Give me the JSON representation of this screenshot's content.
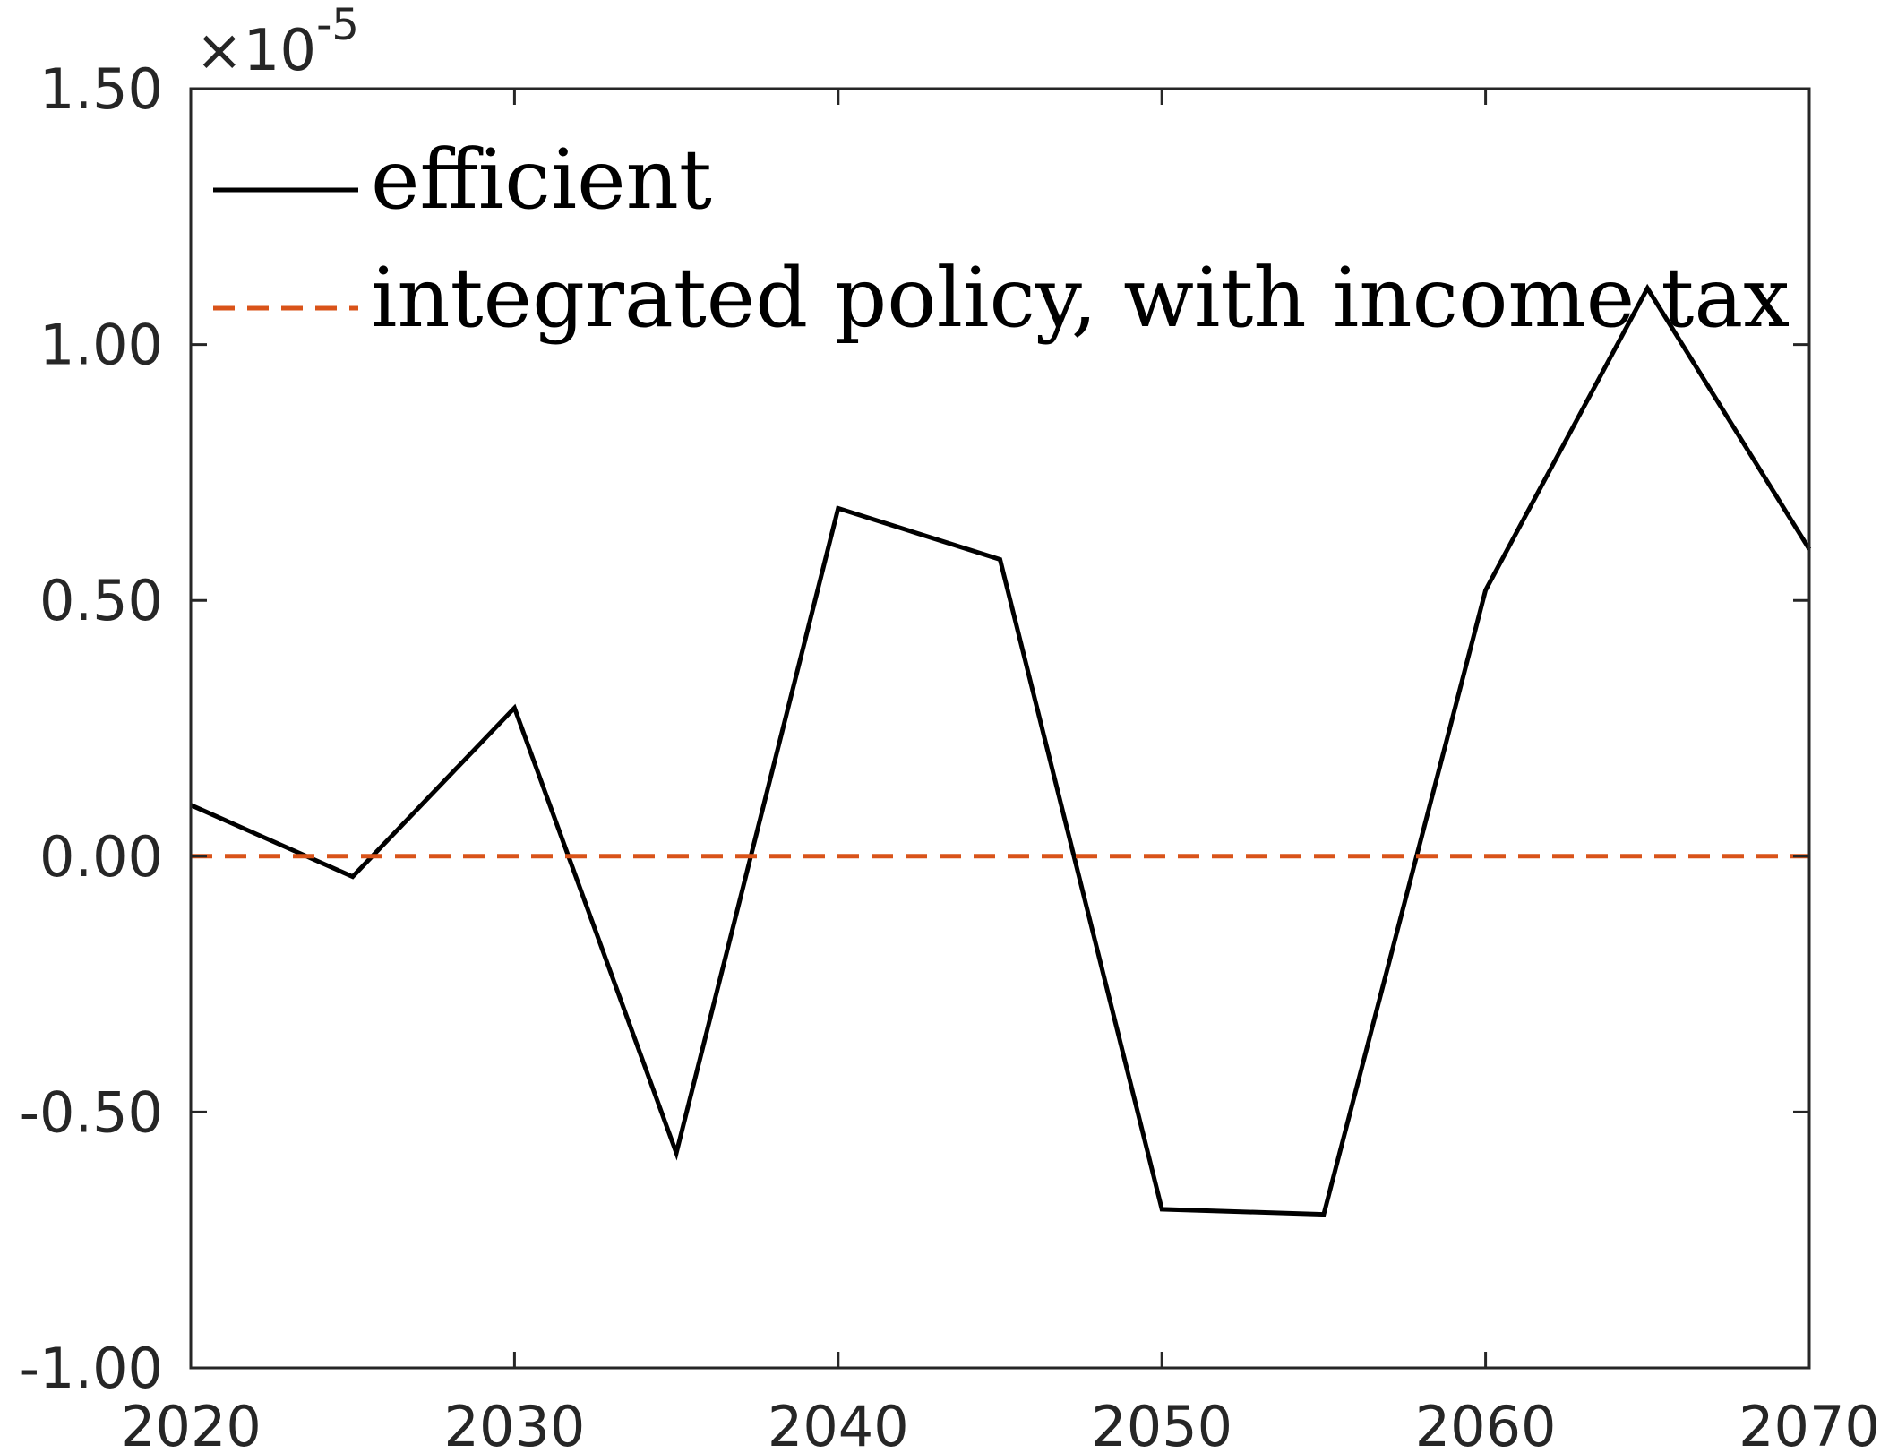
{
  "chart_data": {
    "type": "line",
    "title": "",
    "xlabel": "",
    "ylabel": "",
    "xlim": [
      2020,
      2070
    ],
    "ylim": [
      -1.0,
      1.5
    ],
    "y_multiplier": "×10",
    "y_exponent": "-5",
    "xticks": [
      2020,
      2030,
      2040,
      2050,
      2060,
      2070
    ],
    "xtick_labels": [
      "2020",
      "2030",
      "2040",
      "2050",
      "2060",
      "2070"
    ],
    "yticks": [
      -1.0,
      -0.5,
      0.0,
      0.5,
      1.0,
      1.5
    ],
    "ytick_labels": [
      "-1.00",
      "-0.50",
      "0.00",
      "0.50",
      "1.00",
      "1.50"
    ],
    "grid": false,
    "legend_position": "top-left",
    "x": [
      2020,
      2025,
      2030,
      2035,
      2040,
      2045,
      2050,
      2055,
      2060,
      2065,
      2070
    ],
    "series": [
      {
        "name": "efficient",
        "color": "#000000",
        "dash": "solid",
        "values": [
          0.1,
          -0.04,
          0.29,
          -0.58,
          0.68,
          0.58,
          -0.69,
          -0.7,
          0.52,
          1.11,
          0.6
        ]
      },
      {
        "name": "integrated policy, with income tax",
        "color": "#D95319",
        "dash": "dashed",
        "values": [
          0,
          0,
          0,
          0,
          0,
          0,
          0,
          0,
          0,
          0,
          0
        ]
      }
    ]
  }
}
